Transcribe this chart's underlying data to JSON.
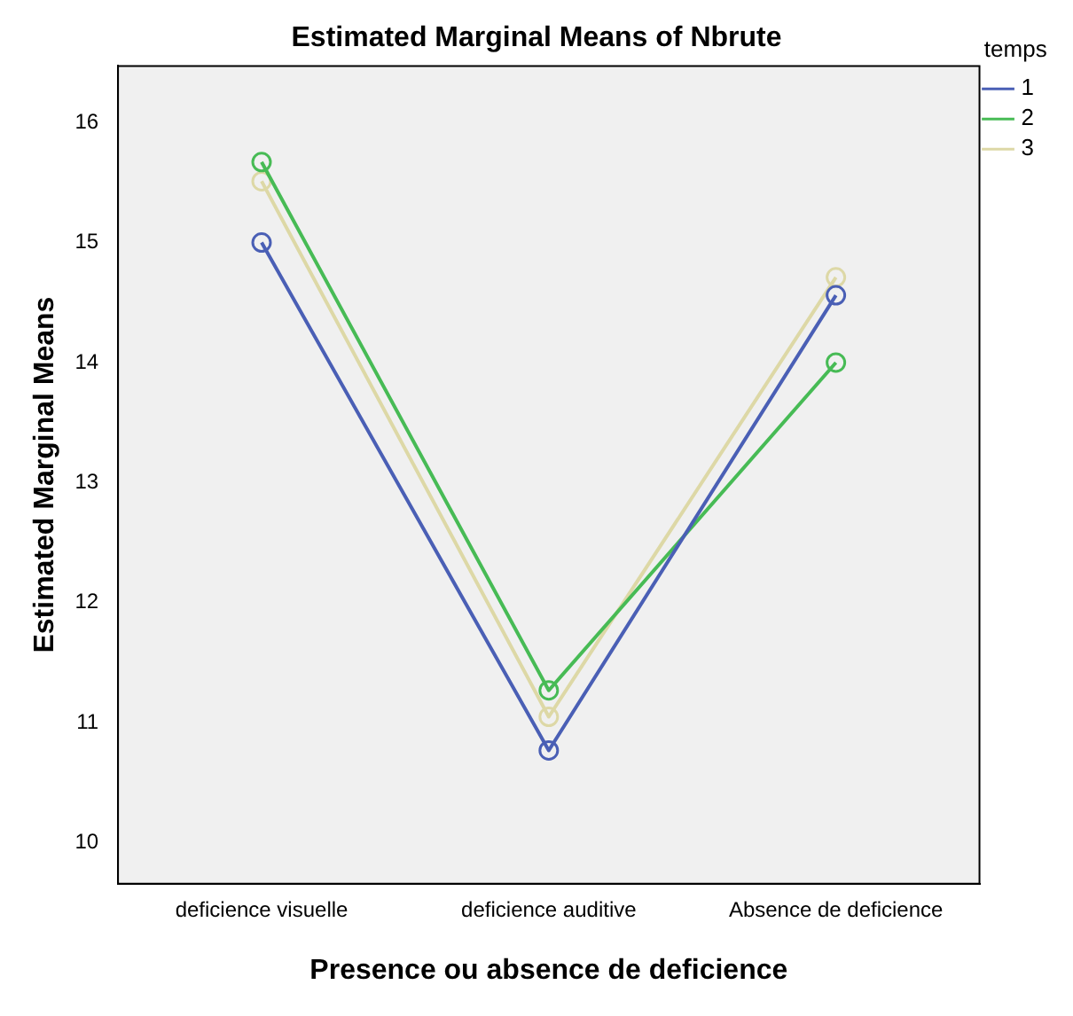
{
  "chart_data": {
    "type": "line",
    "title": "Estimated Marginal Means of Nbrute",
    "xlabel": "Presence ou absence de deficience",
    "ylabel": "Estimated Marginal Means",
    "legend_title": "temps",
    "categories": [
      "deficience visuelle",
      "deficience auditive",
      "Absence de deficience"
    ],
    "series": [
      {
        "name": "1",
        "color": "#4a5fb5",
        "values": [
          15.0,
          10.77,
          14.56
        ]
      },
      {
        "name": "2",
        "color": "#47bb55",
        "values": [
          15.67,
          11.27,
          14.0
        ]
      },
      {
        "name": "3",
        "color": "#ddd8a6",
        "values": [
          15.51,
          11.05,
          14.71
        ]
      }
    ],
    "ylim": [
      9.66,
      16.47
    ],
    "yticks": [
      10,
      11,
      12,
      13,
      14,
      15,
      16
    ],
    "grid": false,
    "legend": "top right",
    "marker": "circle",
    "line_style": "solid"
  }
}
